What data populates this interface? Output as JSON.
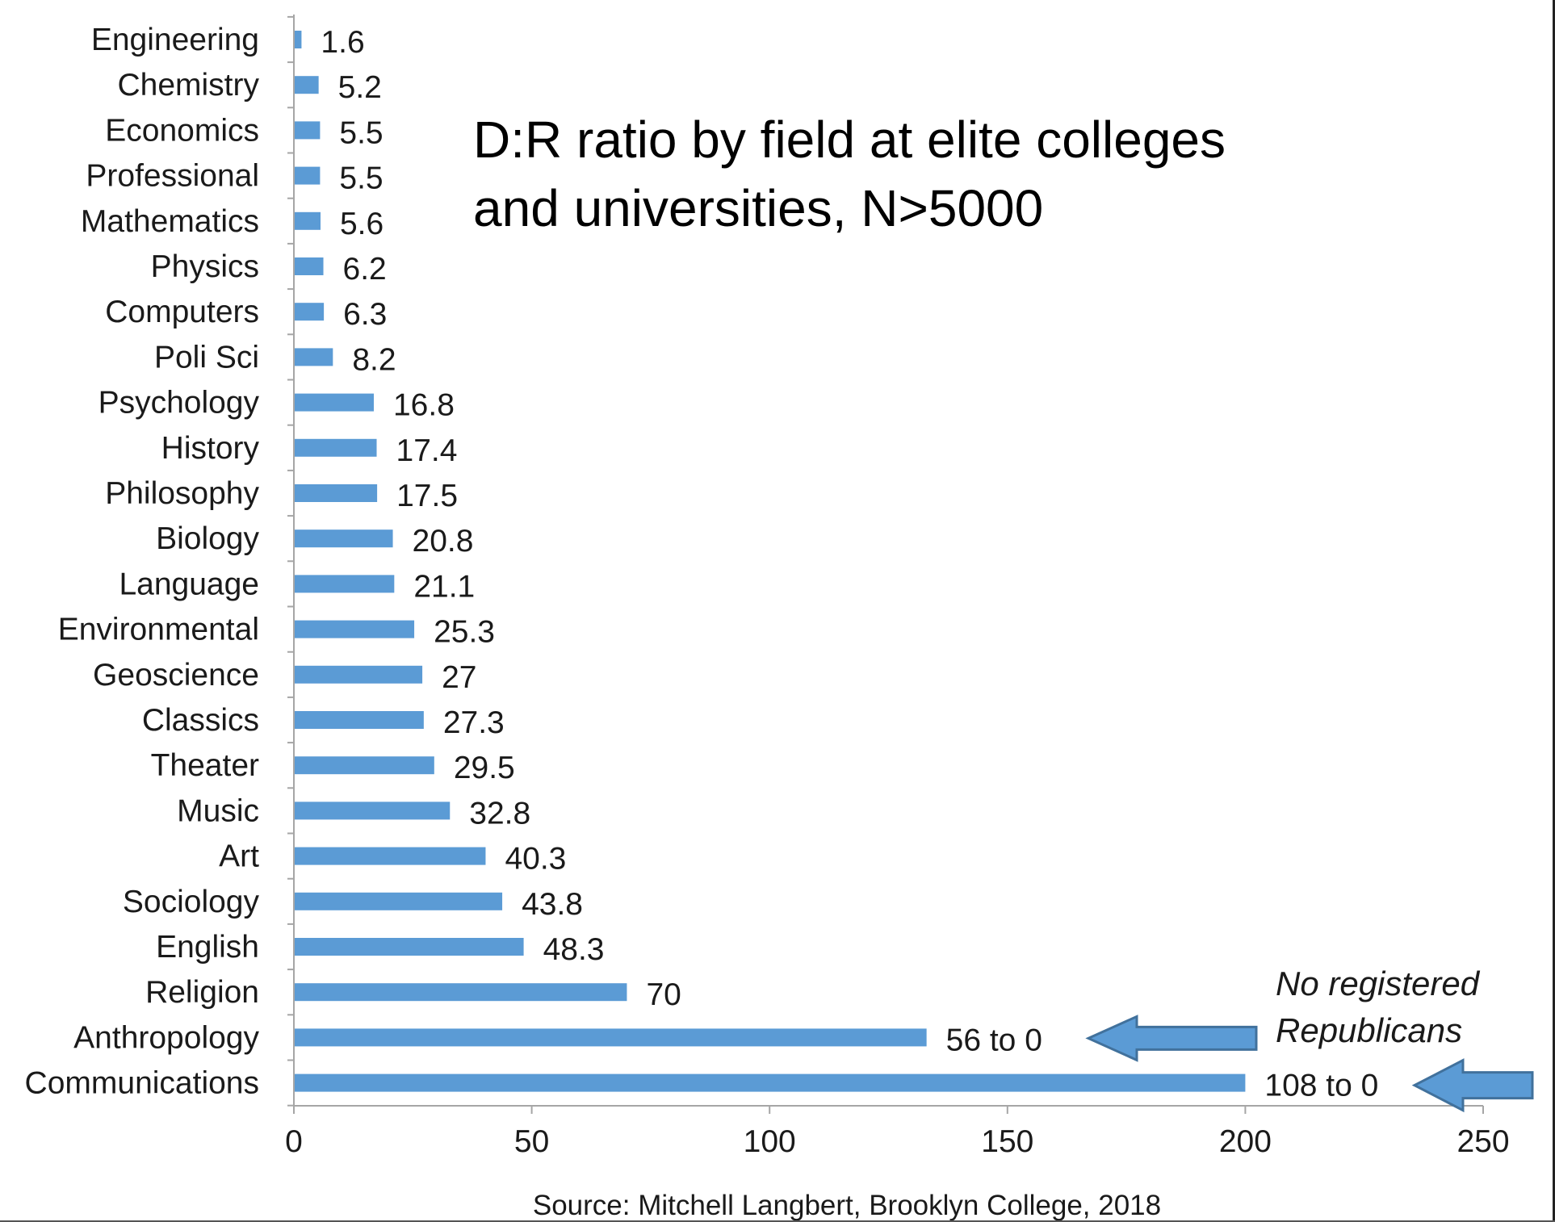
{
  "chart_data": {
    "type": "bar",
    "orientation": "horizontal",
    "title_lines": [
      "D:R ratio by field at elite colleges",
      "and universities, N>5000"
    ],
    "categories": [
      "Engineering",
      "Chemistry",
      "Economics",
      "Professional",
      "Mathematics",
      "Physics",
      "Computers",
      "Poli Sci",
      "Psychology",
      "History",
      "Philosophy",
      "Biology",
      "Language",
      "Environmental",
      "Geoscience",
      "Classics",
      "Theater",
      "Music",
      "Art",
      "Sociology",
      "English",
      "Religion",
      "Anthropology",
      "Communications"
    ],
    "values": [
      1.6,
      5.2,
      5.5,
      5.5,
      5.6,
      6.2,
      6.3,
      8.2,
      16.8,
      17.4,
      17.5,
      20.8,
      21.1,
      25.3,
      27,
      27.3,
      29.5,
      32.8,
      40.3,
      43.8,
      48.3,
      70,
      133,
      200
    ],
    "value_labels": [
      "1.6",
      "5.2",
      "5.5",
      "5.5",
      "5.6",
      "6.2",
      "6.3",
      "8.2",
      "16.8",
      "17.4",
      "17.5",
      "20.8",
      "21.1",
      "25.3",
      "27",
      "27.3",
      "29.5",
      "32.8",
      "40.3",
      "43.8",
      "48.3",
      "70",
      "56 to 0",
      "108 to 0"
    ],
    "xlim": [
      0,
      250
    ],
    "xticks": [
      "0",
      "50",
      "100",
      "150",
      "200",
      "250"
    ],
    "xtick_values": [
      0,
      50,
      100,
      150,
      200,
      250
    ],
    "source": "Source: Mitchell Langbert, Brooklyn College, 2018",
    "annotation_lines": [
      "No registered",
      "Republicans"
    ],
    "bar_color": "#5b9bd5",
    "axis_color": "#a6a6a6"
  }
}
